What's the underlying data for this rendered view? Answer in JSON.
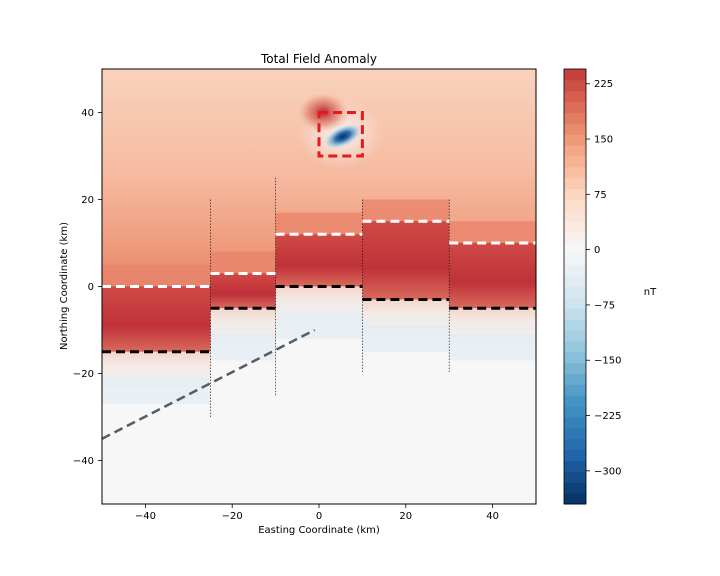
{
  "chart_data": {
    "type": "heatmap",
    "title": "Total Field Anomaly",
    "xlabel": "Easting Coordinate (km)",
    "ylabel": "Northing Coordinate (km)",
    "xlim": [
      -50,
      50
    ],
    "ylim": [
      -50,
      50
    ],
    "x_ticks": [
      -40,
      -20,
      0,
      20,
      40
    ],
    "y_ticks": [
      -40,
      -20,
      0,
      20,
      40
    ],
    "colormap": "RdBu_r",
    "colorbar": {
      "label": "nT",
      "range": [
        -345,
        245
      ],
      "ticks": [
        -300,
        -225,
        -150,
        -75,
        0,
        75,
        150,
        225
      ]
    },
    "layers": [
      {
        "x_range": [
          -50,
          -25
        ],
        "top": 0,
        "bottom": -15
      },
      {
        "x_range": [
          -25,
          -10
        ],
        "top": 3,
        "bottom": -5
      },
      {
        "x_range": [
          -10,
          10
        ],
        "top": 12,
        "bottom": 0
      },
      {
        "x_range": [
          10,
          30
        ],
        "top": 15,
        "bottom": -3
      },
      {
        "x_range": [
          30,
          50
        ],
        "top": 10,
        "bottom": -5
      }
    ],
    "faults": [
      {
        "x": -25,
        "y_range": [
          -30,
          20
        ]
      },
      {
        "x": -10,
        "y_range": [
          -25,
          25
        ]
      },
      {
        "x": 10,
        "y_range": [
          -20,
          20
        ]
      },
      {
        "x": 30,
        "y_range": [
          -20,
          20
        ]
      }
    ],
    "dipping_line": {
      "from": [
        -50,
        -35
      ],
      "to": [
        -1,
        -10
      ]
    },
    "source_box": {
      "x_range": [
        0,
        10
      ],
      "y_range": [
        30,
        40
      ]
    },
    "colors": {
      "box": "#e41a1c",
      "layer_top": "#ffffff",
      "layer_bottom": "#000000",
      "dipping_line": "#555d66"
    }
  }
}
